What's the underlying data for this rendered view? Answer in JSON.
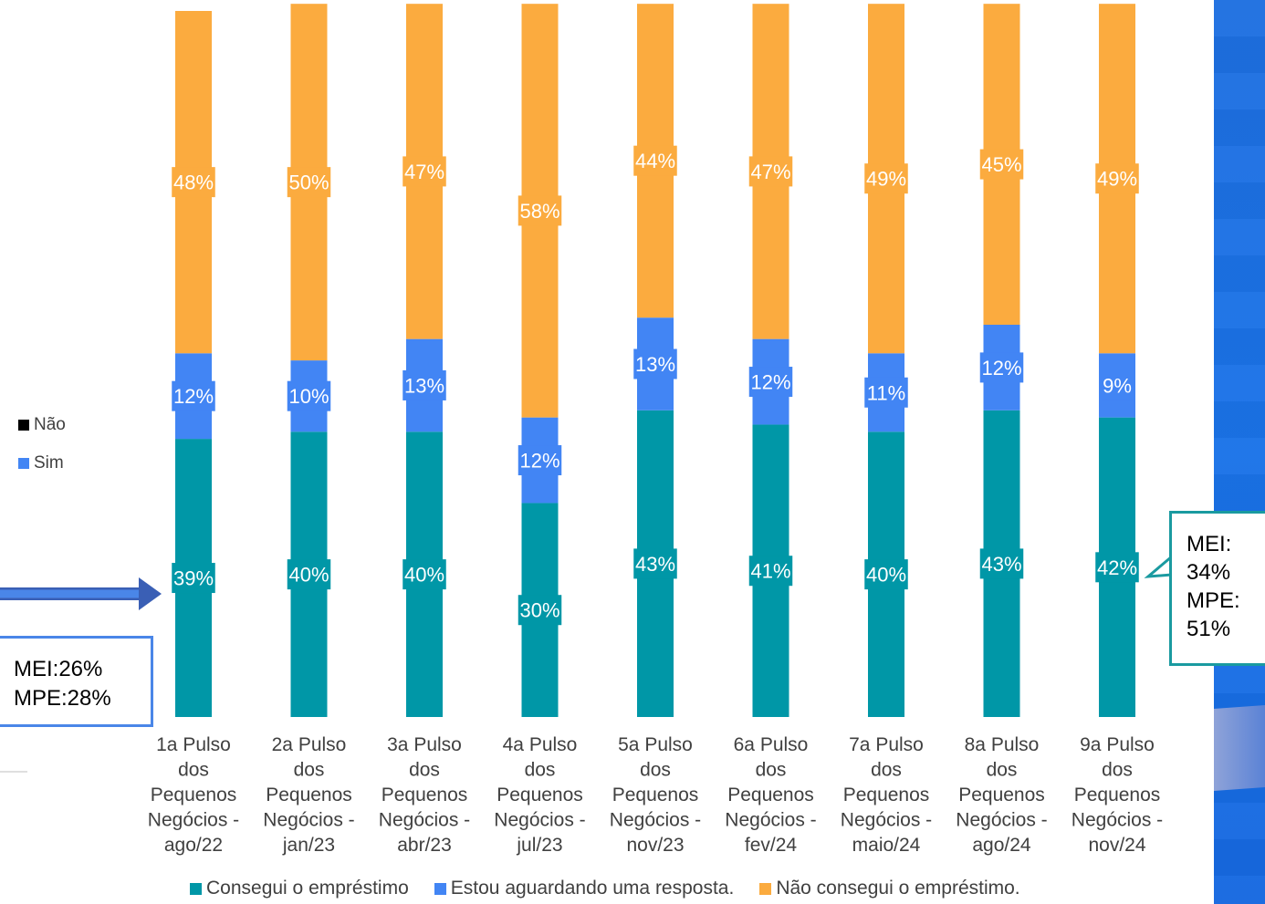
{
  "chart_data": {
    "type": "bar",
    "stacked": true,
    "categories": [
      [
        "1a Pulso",
        "dos",
        "Pequenos",
        "Negócios -",
        "ago/22"
      ],
      [
        "2a Pulso",
        "dos",
        "Pequenos",
        "Negócios -",
        "jan/23"
      ],
      [
        "3a Pulso",
        "dos",
        "Pequenos",
        "Negócios -",
        "abr/23"
      ],
      [
        "4a Pulso",
        "dos",
        "Pequenos",
        "Negócios -",
        "jul/23"
      ],
      [
        "5a Pulso",
        "dos",
        "Pequenos",
        "Negócios -",
        "nov/23"
      ],
      [
        "6a Pulso",
        "dos",
        "Pequenos",
        "Negócios -",
        "fev/24"
      ],
      [
        "7a Pulso",
        "dos",
        "Pequenos",
        "Negócios -",
        "maio/24"
      ],
      [
        "8a Pulso",
        "dos",
        "Pequenos",
        "Negócios -",
        "ago/24"
      ],
      [
        "9a Pulso",
        "dos",
        "Pequenos",
        "Negócios -",
        "nov/24"
      ]
    ],
    "series": [
      {
        "name": "Consegui o empréstimo",
        "color": "#0097a7",
        "values": [
          39,
          40,
          40,
          30,
          43,
          41,
          40,
          43,
          42
        ],
        "labels": [
          "39%",
          "40%",
          "40%",
          "30%",
          "43%",
          "41%",
          "40%",
          "43%",
          "42%"
        ]
      },
      {
        "name": "Estou aguardando uma resposta.",
        "color": "#4285f4",
        "values": [
          12,
          10,
          13,
          12,
          13,
          12,
          11,
          12,
          9
        ],
        "labels": [
          "12%",
          "10%",
          "13%",
          "12%",
          "13%",
          "12%",
          "11%",
          "12%",
          "9%"
        ]
      },
      {
        "name": "Não consegui o empréstimo.",
        "color": "#fbab3f",
        "values": [
          48,
          50,
          47,
          58,
          44,
          47,
          49,
          45,
          49
        ],
        "labels": [
          "48%",
          "50%",
          "47%",
          "58%",
          "44%",
          "47%",
          "49%",
          "45%",
          "49%"
        ]
      }
    ],
    "legend_position": "bottom",
    "grid": false
  },
  "side_legend": [
    {
      "label": "Não",
      "color": "#000000"
    },
    {
      "label": "Sim",
      "color": "#4285f4"
    }
  ],
  "callout_left": {
    "line1": "MEI:26%",
    "line2": "MPE:28%"
  },
  "callout_right": {
    "line1": "MEI:",
    "line2": "34%",
    "line3": "MPE:",
    "line4": "51%"
  }
}
